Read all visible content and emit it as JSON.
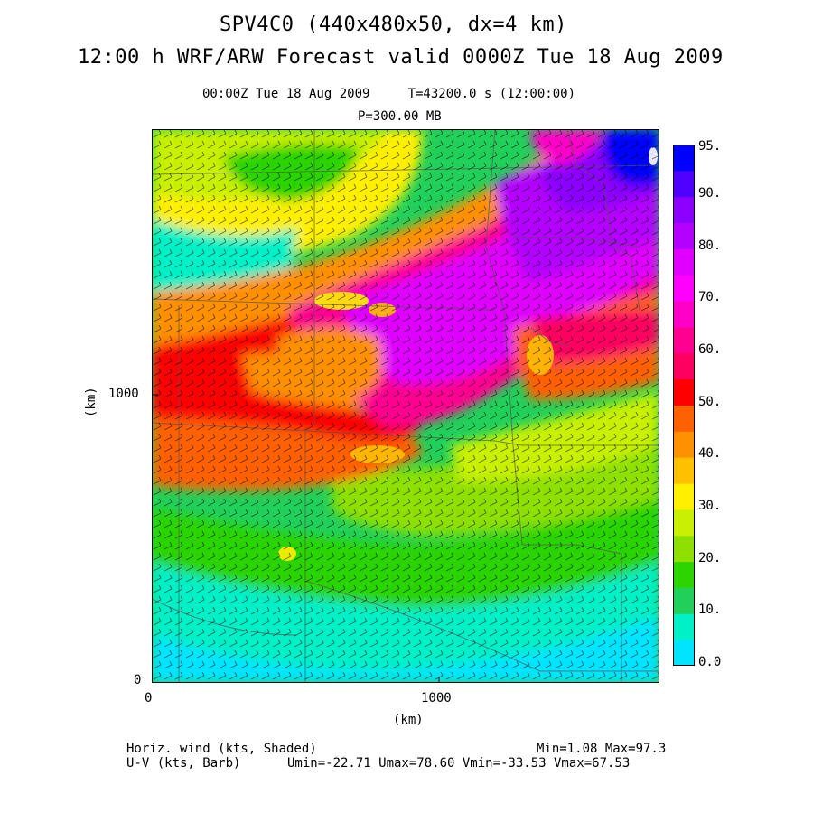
{
  "header": {
    "title_line1": "SPV4C0 (440x480x50, dx=4 km)",
    "title_line2": "12:00 h WRF/ARW Forecast valid 0000Z Tue 18 Aug 2009",
    "time_info": "00:00Z Tue 18 Aug 2009     T=43200.0 s (12:00:00)",
    "level": "P=300.00 MB"
  },
  "axes": {
    "y_label": "(km)",
    "x_label": "(km)",
    "y_ticks": [
      "0",
      "1000"
    ],
    "x_ticks": [
      "0",
      "1000"
    ]
  },
  "colorbar": {
    "labels": [
      "95.",
      "90.",
      "80.",
      "70.",
      "60.",
      "50.",
      "40.",
      "30.",
      "20.",
      "10.",
      "0.0"
    ],
    "bins": [
      {
        "color": "#00e5ff"
      },
      {
        "color": "#00f0c8"
      },
      {
        "color": "#21d05a"
      },
      {
        "color": "#2cd400"
      },
      {
        "color": "#8ee000"
      },
      {
        "color": "#c8f000"
      },
      {
        "color": "#fff000"
      },
      {
        "color": "#ffc000"
      },
      {
        "color": "#ff9000"
      },
      {
        "color": "#ff6000"
      },
      {
        "color": "#ff0000"
      },
      {
        "color": "#ff0060"
      },
      {
        "color": "#ff0090"
      },
      {
        "color": "#ff00c8"
      },
      {
        "color": "#ff00ff"
      },
      {
        "color": "#e000ff"
      },
      {
        "color": "#b400ff"
      },
      {
        "color": "#8c00ff"
      },
      {
        "color": "#5000ff"
      },
      {
        "color": "#0000ff"
      }
    ]
  },
  "footer": {
    "left1": "Horiz. wind (kts, Shaded)",
    "left2": "U-V (kts, Barb)",
    "right1": "Min=1.08 Max=97.3",
    "right2": "Umin=-22.71 Umax=78.60 Vmin=-33.53 Vmax=67.53"
  }
}
